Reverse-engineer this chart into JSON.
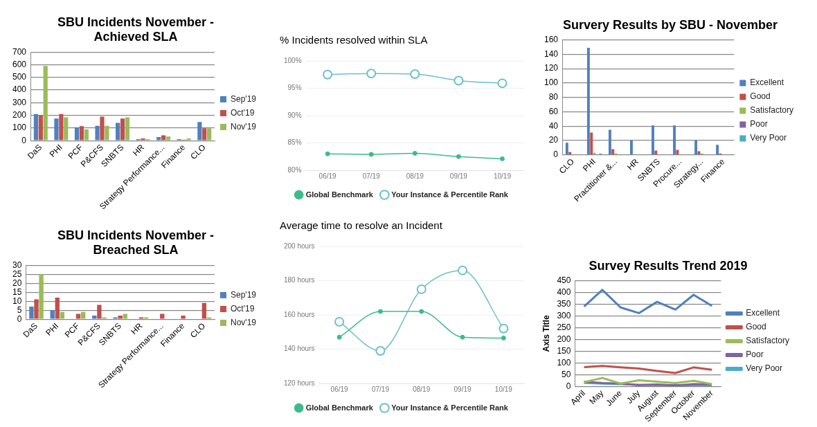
{
  "chart_data": [
    {
      "type": "bar",
      "title": "SBU Incidents November - Achieved SLA",
      "categories": [
        "DaS",
        "PHI",
        "PCF",
        "P&CFS",
        "SNBTS",
        "HR",
        "Strategy Performance...",
        "Finance",
        "CLO"
      ],
      "series": [
        {
          "name": "Sep'19",
          "color": "#4f81bd",
          "values": [
            210,
            175,
            105,
            118,
            140,
            12,
            28,
            12,
            148
          ]
        },
        {
          "name": "Oct'19",
          "color": "#c0504d",
          "values": [
            200,
            210,
            115,
            190,
            175,
            18,
            42,
            8,
            98
          ]
        },
        {
          "name": "Nov'19",
          "color": "#9bbb59",
          "values": [
            590,
            185,
            88,
            118,
            185,
            12,
            32,
            18,
            98
          ]
        }
      ],
      "ylim": [
        0,
        700
      ],
      "yticks": [
        0,
        100,
        200,
        300,
        400,
        500,
        600,
        700
      ],
      "grid": "y",
      "legend": "right"
    },
    {
      "type": "line",
      "title": "% Incidents resolved within SLA",
      "categories": [
        "06/19",
        "07/19",
        "08/19",
        "09/19",
        "10/19"
      ],
      "series": [
        {
          "name": "Global Benchmark",
          "color": "#3dbb8c",
          "values": [
            83,
            82.9,
            83.1,
            82.5,
            82.1
          ]
        },
        {
          "name": "Your Instance & Percentile Rank",
          "color": "#6cbfcc",
          "values": [
            97.5,
            97.7,
            97.6,
            96.4,
            95.9
          ]
        }
      ],
      "ylim": [
        80,
        100
      ],
      "yticks": [
        {
          "value": 80,
          "label": "80%"
        },
        {
          "value": 85,
          "label": "85%"
        },
        {
          "value": 90,
          "label": "90%"
        },
        {
          "value": 95,
          "label": "95%"
        },
        {
          "value": 100,
          "label": "100%"
        }
      ],
      "grid": "y",
      "legend": "bottom",
      "marker": "circle"
    },
    {
      "type": "bar",
      "title": "Survery Results by SBU - November",
      "categories": [
        "CLO",
        "PHI",
        "Practitioner &...",
        "HR",
        "SNBTS",
        "Procure...",
        "Strategy...",
        "Finance"
      ],
      "series": [
        {
          "name": "Excellent",
          "color": "#4f81bd",
          "values": [
            17,
            149,
            35,
            20,
            41,
            41,
            20,
            14
          ]
        },
        {
          "name": "Good",
          "color": "#c0504d",
          "values": [
            4,
            31,
            8,
            0,
            6,
            7,
            5,
            2
          ]
        },
        {
          "name": "Satisfactory",
          "color": "#9bbb59",
          "values": [
            0,
            3,
            2,
            0,
            0,
            0,
            2,
            0
          ]
        },
        {
          "name": "Poor",
          "color": "#8064a2",
          "values": [
            0,
            0,
            null,
            0,
            null,
            null,
            0,
            0
          ]
        },
        {
          "name": "Very Poor",
          "color": "#4bacc6",
          "values": [
            0,
            2,
            0,
            0,
            null,
            null,
            0,
            0
          ]
        }
      ],
      "ylim": [
        0,
        160
      ],
      "yticks": [
        0,
        20,
        40,
        60,
        80,
        100,
        120,
        140,
        160
      ],
      "grid": "y",
      "legend": "right"
    },
    {
      "type": "bar",
      "title": "SBU Incidents November - Breached SLA",
      "categories": [
        "DaS",
        "PHI",
        "PCF",
        "P&CFS",
        "SNBTS",
        "HR",
        "Strategy Performance...",
        "Finance",
        "CLO"
      ],
      "series": [
        {
          "name": "Sep'19",
          "color": "#4f81bd",
          "values": [
            7,
            5,
            0,
            2,
            1,
            0,
            0,
            0,
            0
          ]
        },
        {
          "name": "Oct'19",
          "color": "#c0504d",
          "values": [
            11,
            12,
            3,
            8,
            2,
            1,
            3,
            2,
            9
          ]
        },
        {
          "name": "Nov'19",
          "color": "#9bbb59",
          "values": [
            25,
            4,
            4,
            1,
            3,
            1,
            0,
            0,
            1
          ]
        }
      ],
      "ylim": [
        0,
        30
      ],
      "yticks": [
        0,
        5,
        10,
        15,
        20,
        25,
        30
      ],
      "grid": "y",
      "legend": "right"
    },
    {
      "type": "line",
      "title": "Average time to resolve an Incident",
      "categories": [
        "06/19",
        "07/19",
        "08/19",
        "09/19",
        "10/19"
      ],
      "series": [
        {
          "name": "Global Benchmark",
          "color": "#3dbb8c",
          "values": [
            147,
            162,
            162,
            147,
            146.5
          ]
        },
        {
          "name": "Your Instance & Percentile Rank",
          "color": "#6cbfcc",
          "values": [
            156,
            139,
            175,
            186,
            152
          ]
        }
      ],
      "ylim": [
        120,
        200
      ],
      "yticks": [
        {
          "value": 120,
          "label": "120 hours"
        },
        {
          "value": 140,
          "label": "140 hours"
        },
        {
          "value": 160,
          "label": "160 hours"
        },
        {
          "value": 180,
          "label": "180 hours"
        },
        {
          "value": 200,
          "label": "200 hours"
        }
      ],
      "grid": "y",
      "legend": "bottom",
      "marker": "circle"
    },
    {
      "type": "line",
      "title": "Survey Results Trend 2019",
      "ylabel": "Axis Title",
      "categories": [
        "April",
        "May",
        "June",
        "July",
        "August",
        "September",
        "October",
        "November"
      ],
      "series": [
        {
          "name": "Excellent",
          "color": "#4f81bd",
          "values": [
            340,
            411,
            336,
            312,
            360,
            327,
            390,
            343
          ]
        },
        {
          "name": "Good",
          "color": "#c0504d",
          "values": [
            82,
            87,
            81,
            76,
            66,
            57,
            81,
            71
          ]
        },
        {
          "name": "Satisfactory",
          "color": "#9bbb59",
          "values": [
            18,
            36,
            12,
            26,
            20,
            14,
            24,
            10
          ]
        },
        {
          "name": "Poor",
          "color": "#8064a2",
          "values": [
            20,
            14,
            12,
            5,
            8,
            4,
            10,
            8
          ]
        },
        {
          "name": "Very Poor",
          "color": "#4bacc6",
          "values": [
            15,
            12,
            10,
            7,
            5,
            5,
            4,
            5
          ]
        }
      ],
      "ylim": [
        0,
        450
      ],
      "yticks": [
        0,
        50,
        100,
        150,
        200,
        250,
        300,
        350,
        400,
        450
      ],
      "grid": "y",
      "legend": "right",
      "marker": "none"
    }
  ]
}
